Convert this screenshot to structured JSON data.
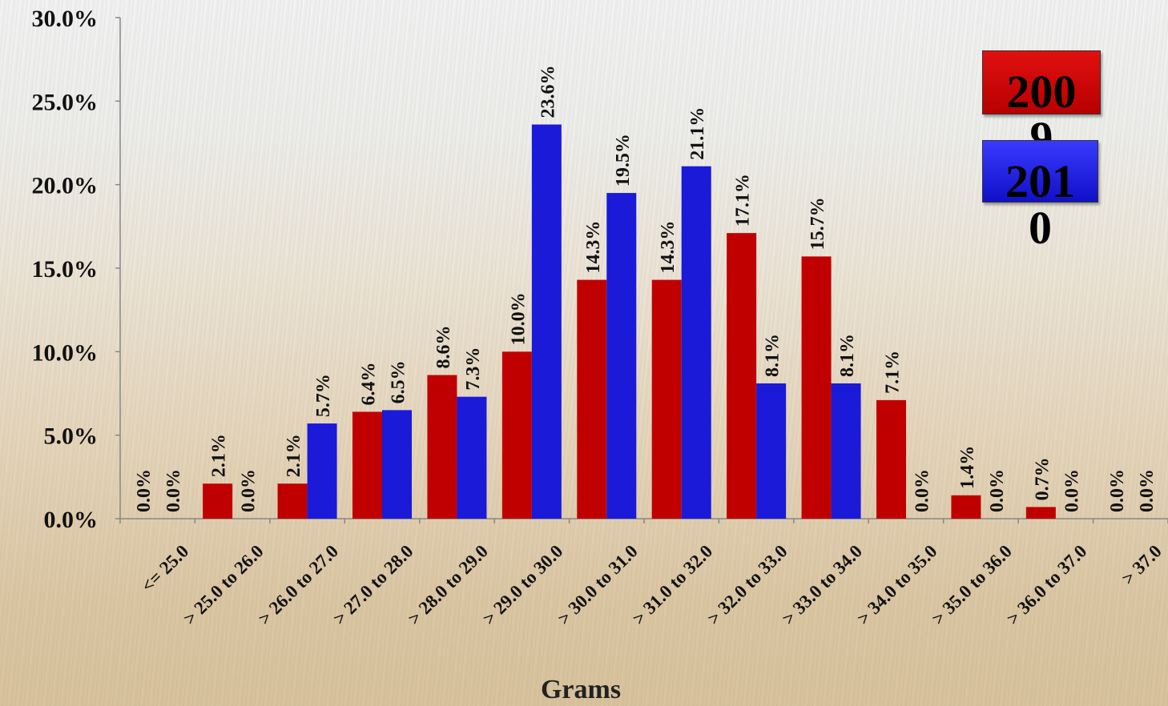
{
  "chart_data": {
    "type": "bar",
    "xlabel": "Grams",
    "ylabel": "",
    "ylim": [
      0,
      30
    ],
    "yticks": [
      "0.0%",
      "5.0%",
      "10.0%",
      "15.0%",
      "20.0%",
      "25.0%",
      "30.0%"
    ],
    "categories": [
      "<= 25.0",
      "> 25.0 to 26.0",
      "> 26.0 to 27.0",
      "> 27.0 to 28.0",
      "> 28.0 to 29.0",
      "> 29.0 to 30.0",
      "> 30.0 to 31.0",
      "> 31.0 to 32.0",
      "> 32.0 to 33.0",
      "> 33.0 to 34.0",
      "> 34.0 to 35.0",
      "> 35.0 to 36.0",
      "> 36.0 to 37.0",
      "> 37.0"
    ],
    "series": [
      {
        "name": "2009",
        "color": "#c00000",
        "values": [
          0.0,
          2.1,
          2.1,
          6.4,
          8.6,
          10.0,
          14.3,
          14.3,
          17.1,
          15.7,
          7.1,
          1.4,
          0.7,
          0.0
        ],
        "labels": [
          "0.0%",
          "2.1%",
          "2.1%",
          "6.4%",
          "8.6%",
          "10.0%",
          "14.3%",
          "14.3%",
          "17.1%",
          "15.7%",
          "7.1%",
          "1.4%",
          "0.7%",
          "0.0%"
        ]
      },
      {
        "name": "2010",
        "color": "#1a1ad8",
        "values": [
          0.0,
          0.0,
          5.7,
          6.5,
          7.3,
          23.6,
          19.5,
          21.1,
          8.1,
          8.1,
          0.0,
          0.0,
          0.0,
          0.0
        ],
        "labels": [
          "0.0%",
          "0.0%",
          "5.7%",
          "6.5%",
          "7.3%",
          "23.6%",
          "19.5%",
          "21.1%",
          "8.1%",
          "8.1%",
          "0.0%",
          "0.0%",
          "0.0%",
          "0.0%"
        ]
      }
    ],
    "legend": [
      "2009",
      "2010"
    ],
    "legend_position": "top-right"
  }
}
